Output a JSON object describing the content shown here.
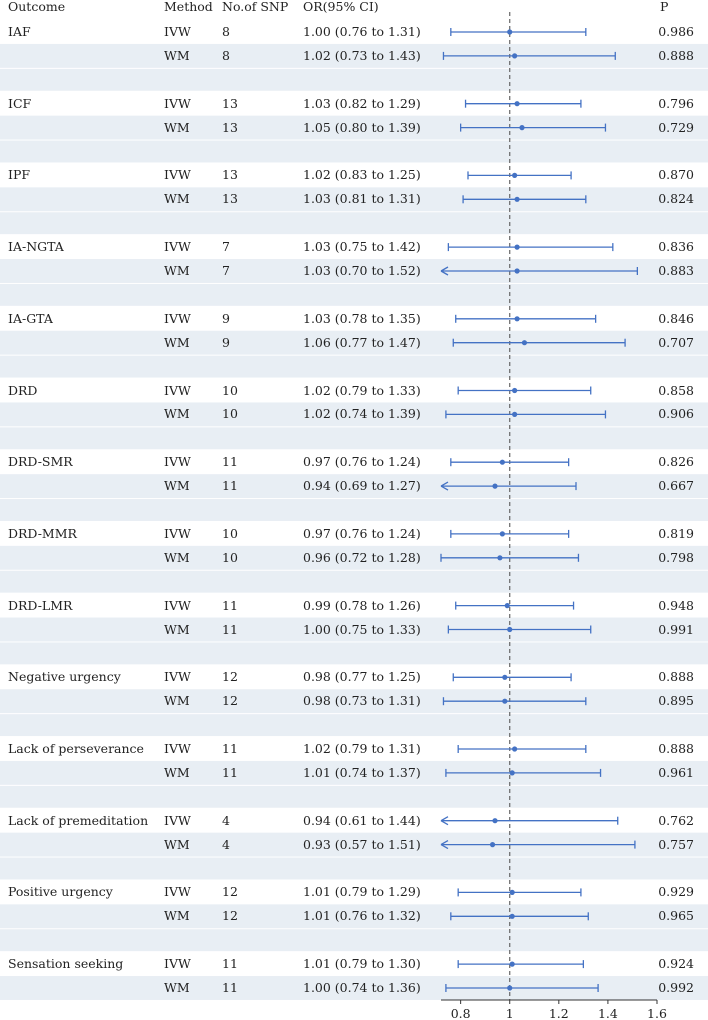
{
  "headers": {
    "outcome": "Outcome",
    "method": "Method",
    "nsnp": "No.of SNP",
    "or": "OR(95% CI)",
    "p": "P"
  },
  "colors": {
    "stripe": "#e8eef4",
    "ci_line": "#4472c4",
    "point": "#4472c4",
    "reference_line": "#666666"
  },
  "chart_data": {
    "type": "forest",
    "reference_line": 1,
    "xlim": [
      0.72,
      1.6
    ],
    "x_ticks": [
      0.8,
      1,
      1.2,
      1.4,
      1.6
    ],
    "x_tick_labels": [
      "0.8",
      "1",
      "1.2",
      "1.4",
      "1.6"
    ],
    "rows": [
      {
        "outcome": "IAF",
        "method": "IVW",
        "nsnp": "8",
        "or_text": "1.00 (0.76 to 1.31)",
        "or": 1.0,
        "lo": 0.76,
        "hi": 1.31,
        "p": "0.986"
      },
      {
        "outcome": "",
        "method": "WM",
        "nsnp": "8",
        "or_text": "1.02 (0.73 to 1.43)",
        "or": 1.02,
        "lo": 0.73,
        "hi": 1.43,
        "p": "0.888"
      },
      {
        "outcome": "ICF",
        "method": "IVW",
        "nsnp": "13",
        "or_text": "1.03 (0.82 to 1.29)",
        "or": 1.03,
        "lo": 0.82,
        "hi": 1.29,
        "p": "0.796"
      },
      {
        "outcome": "",
        "method": "WM",
        "nsnp": "13",
        "or_text": "1.05 (0.80 to 1.39)",
        "or": 1.05,
        "lo": 0.8,
        "hi": 1.39,
        "p": "0.729"
      },
      {
        "outcome": "IPF",
        "method": "IVW",
        "nsnp": "13",
        "or_text": "1.02 (0.83 to 1.25)",
        "or": 1.02,
        "lo": 0.83,
        "hi": 1.25,
        "p": "0.870"
      },
      {
        "outcome": "",
        "method": "WM",
        "nsnp": "13",
        "or_text": "1.03 (0.81 to 1.31)",
        "or": 1.03,
        "lo": 0.81,
        "hi": 1.31,
        "p": "0.824"
      },
      {
        "outcome": "IA-NGTA",
        "method": "IVW",
        "nsnp": "7",
        "or_text": "1.03 (0.75 to 1.42)",
        "or": 1.03,
        "lo": 0.75,
        "hi": 1.42,
        "p": "0.836"
      },
      {
        "outcome": "",
        "method": "WM",
        "nsnp": "7",
        "or_text": "1.03 (0.70 to 1.52)",
        "or": 1.03,
        "lo": 0.7,
        "hi": 1.52,
        "p": "0.883"
      },
      {
        "outcome": "IA-GTA",
        "method": "IVW",
        "nsnp": "9",
        "or_text": "1.03 (0.78 to 1.35)",
        "or": 1.03,
        "lo": 0.78,
        "hi": 1.35,
        "p": "0.846"
      },
      {
        "outcome": "",
        "method": "WM",
        "nsnp": "9",
        "or_text": "1.06 (0.77 to 1.47)",
        "or": 1.06,
        "lo": 0.77,
        "hi": 1.47,
        "p": "0.707"
      },
      {
        "outcome": "DRD",
        "method": "IVW",
        "nsnp": "10",
        "or_text": "1.02 (0.79 to 1.33)",
        "or": 1.02,
        "lo": 0.79,
        "hi": 1.33,
        "p": "0.858"
      },
      {
        "outcome": "",
        "method": "WM",
        "nsnp": "10",
        "or_text": "1.02 (0.74 to 1.39)",
        "or": 1.02,
        "lo": 0.74,
        "hi": 1.39,
        "p": "0.906"
      },
      {
        "outcome": "DRD-SMR",
        "method": "IVW",
        "nsnp": "11",
        "or_text": "0.97 (0.76 to 1.24)",
        "or": 0.97,
        "lo": 0.76,
        "hi": 1.24,
        "p": "0.826"
      },
      {
        "outcome": "",
        "method": "WM",
        "nsnp": "11",
        "or_text": "0.94 (0.69 to 1.27)",
        "or": 0.94,
        "lo": 0.69,
        "hi": 1.27,
        "p": "0.667"
      },
      {
        "outcome": "DRD-MMR",
        "method": "IVW",
        "nsnp": "10",
        "or_text": "0.97 (0.76 to 1.24)",
        "or": 0.97,
        "lo": 0.76,
        "hi": 1.24,
        "p": "0.819"
      },
      {
        "outcome": "",
        "method": "WM",
        "nsnp": "10",
        "or_text": "0.96 (0.72 to 1.28)",
        "or": 0.96,
        "lo": 0.72,
        "hi": 1.28,
        "p": "0.798"
      },
      {
        "outcome": "DRD-LMR",
        "method": "IVW",
        "nsnp": "11",
        "or_text": "0.99 (0.78 to 1.26)",
        "or": 0.99,
        "lo": 0.78,
        "hi": 1.26,
        "p": "0.948"
      },
      {
        "outcome": "",
        "method": "WM",
        "nsnp": "11",
        "or_text": "1.00 (0.75 to 1.33)",
        "or": 1.0,
        "lo": 0.75,
        "hi": 1.33,
        "p": "0.991"
      },
      {
        "outcome": "Negative urgency",
        "method": "IVW",
        "nsnp": "12",
        "or_text": "0.98 (0.77 to 1.25)",
        "or": 0.98,
        "lo": 0.77,
        "hi": 1.25,
        "p": "0.888"
      },
      {
        "outcome": "",
        "method": "WM",
        "nsnp": "12",
        "or_text": "0.98 (0.73 to 1.31)",
        "or": 0.98,
        "lo": 0.73,
        "hi": 1.31,
        "p": "0.895"
      },
      {
        "outcome": "Lack of perseverance",
        "method": "IVW",
        "nsnp": "11",
        "or_text": "1.02 (0.79 to 1.31)",
        "or": 1.02,
        "lo": 0.79,
        "hi": 1.31,
        "p": "0.888"
      },
      {
        "outcome": "",
        "method": "WM",
        "nsnp": "11",
        "or_text": "1.01 (0.74 to 1.37)",
        "or": 1.01,
        "lo": 0.74,
        "hi": 1.37,
        "p": "0.961"
      },
      {
        "outcome": "Lack of premeditation",
        "method": "IVW",
        "nsnp": "4",
        "or_text": "0.94 (0.61 to 1.44)",
        "or": 0.94,
        "lo": 0.61,
        "hi": 1.44,
        "p": "0.762"
      },
      {
        "outcome": "",
        "method": "WM",
        "nsnp": "4",
        "or_text": "0.93 (0.57 to 1.51)",
        "or": 0.93,
        "lo": 0.57,
        "hi": 1.51,
        "p": "0.757"
      },
      {
        "outcome": "Positive urgency",
        "method": "IVW",
        "nsnp": "12",
        "or_text": "1.01 (0.79 to 1.29)",
        "or": 1.01,
        "lo": 0.79,
        "hi": 1.29,
        "p": "0.929"
      },
      {
        "outcome": "",
        "method": "WM",
        "nsnp": "12",
        "or_text": "1.01 (0.76 to 1.32)",
        "or": 1.01,
        "lo": 0.76,
        "hi": 1.32,
        "p": "0.965"
      },
      {
        "outcome": "Sensation seeking",
        "method": "IVW",
        "nsnp": "11",
        "or_text": "1.01 (0.79 to 1.30)",
        "or": 1.01,
        "lo": 0.79,
        "hi": 1.3,
        "p": "0.924"
      },
      {
        "outcome": "",
        "method": "WM",
        "nsnp": "11",
        "or_text": "1.00 (0.74 to 1.36)",
        "or": 1.0,
        "lo": 0.74,
        "hi": 1.36,
        "p": "0.992"
      }
    ]
  }
}
